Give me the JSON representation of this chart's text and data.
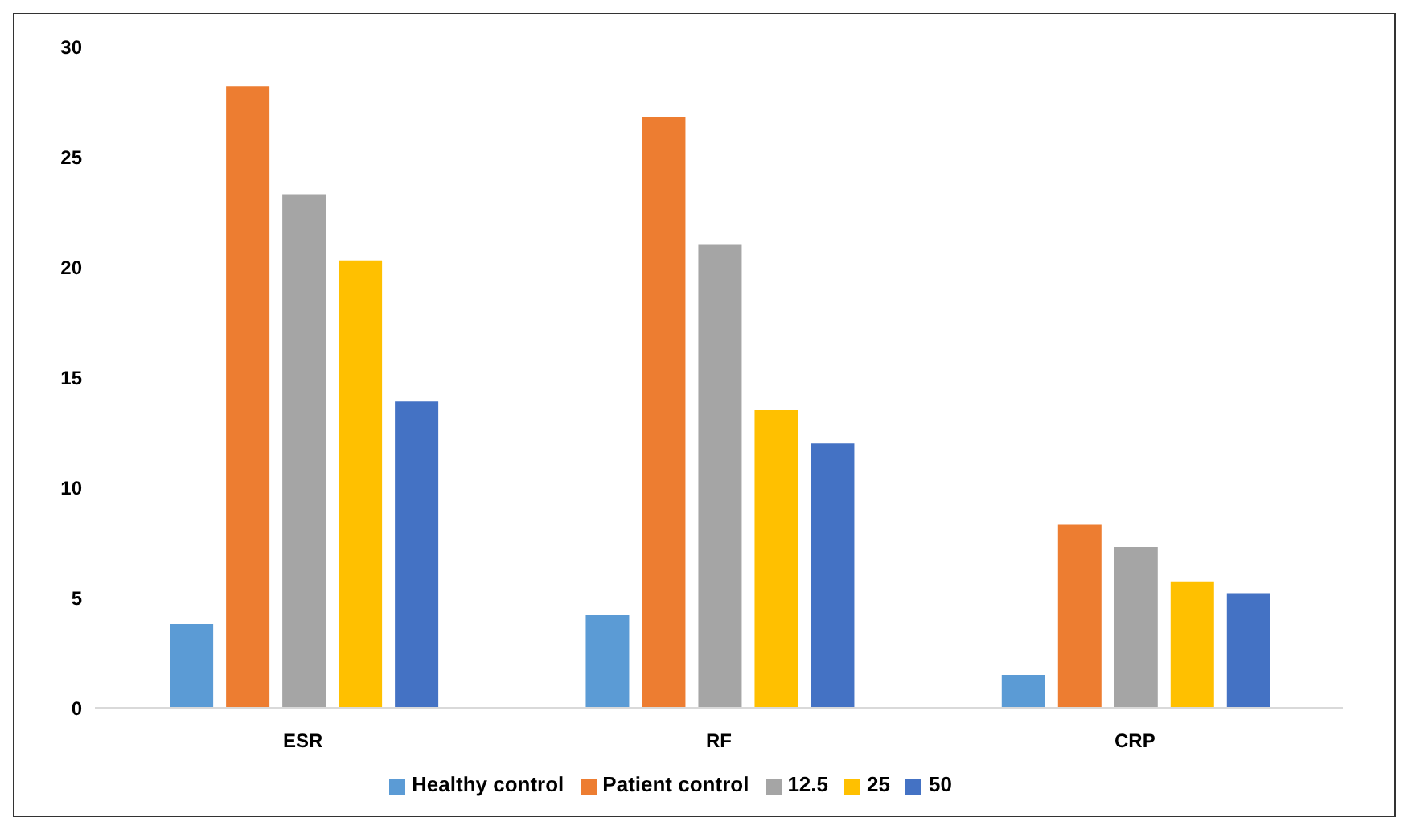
{
  "chart_data": {
    "type": "bar",
    "categories": [
      "ESR",
      "RF",
      "CRP"
    ],
    "series": [
      {
        "name": "Healthy control",
        "color": "#5b9bd5",
        "values": [
          3.8,
          4.2,
          1.5
        ]
      },
      {
        "name": "Patient control",
        "color": "#ed7d31",
        "values": [
          28.2,
          26.8,
          8.3
        ]
      },
      {
        "name": "12.5",
        "color": "#a5a5a5",
        "values": [
          23.3,
          21.0,
          7.3
        ]
      },
      {
        "name": "25",
        "color": "#ffc000",
        "values": [
          20.3,
          13.5,
          5.7
        ]
      },
      {
        "name": "50",
        "color": "#4472c4",
        "values": [
          13.9,
          12.0,
          5.2
        ]
      }
    ],
    "ylim": [
      0,
      30
    ],
    "yticks": [
      0,
      5,
      10,
      15,
      20,
      25,
      30
    ],
    "grid": false,
    "legend": "bottom"
  }
}
